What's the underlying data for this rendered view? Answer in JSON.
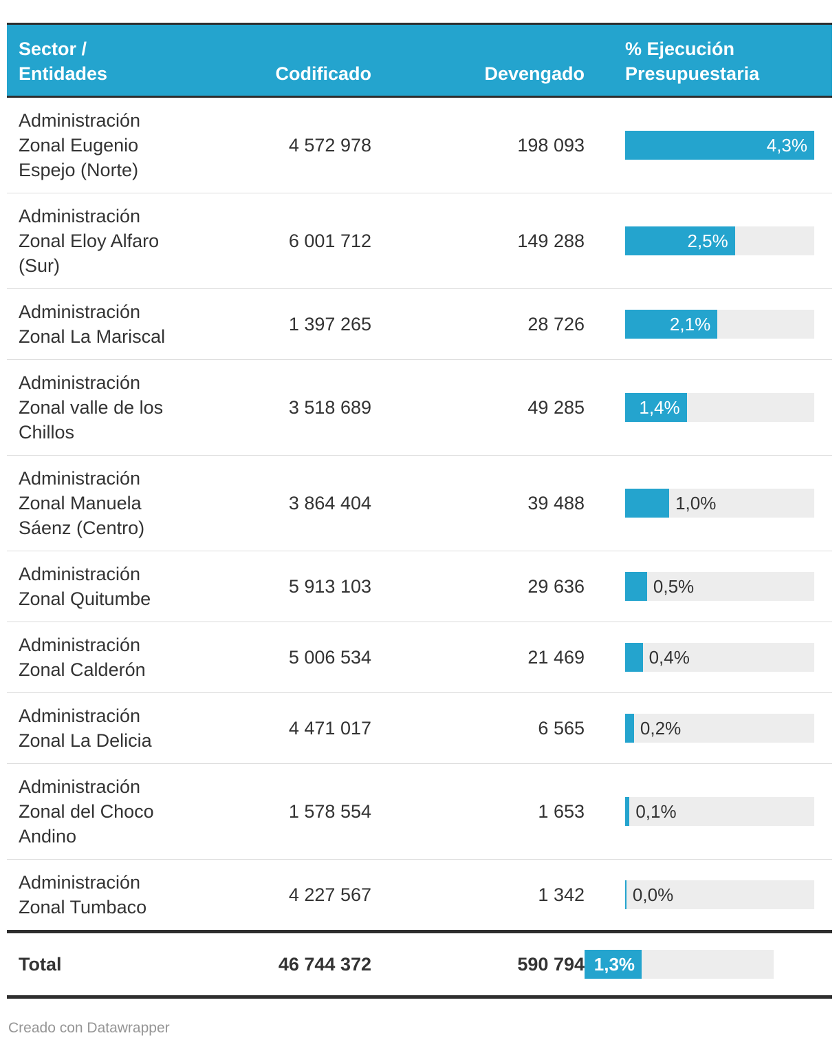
{
  "colors": {
    "accent": "#24a4ce",
    "header_text": "#ffffff",
    "dark_border": "#2e2e2e",
    "row_divider": "#dcdcdc",
    "bar_track": "#ededed",
    "text": "#333333",
    "credit_text": "#959595"
  },
  "header": {
    "sector": "Sector /\nEntidades",
    "codificado": "Codificado",
    "devengado": "Devengado",
    "ejecucion": "% Ejecución\nPresupuestaria"
  },
  "rows": [
    {
      "entity": "Administración\nZonal Eugenio\nEspejo (Norte)",
      "codificado": "4 572 978",
      "devengado": "198 093",
      "pct": "4,3%",
      "bar_pct": 100,
      "label_inside": true
    },
    {
      "entity": "Administración\nZonal Eloy Alfaro\n(Sur)",
      "codificado": "6 001 712",
      "devengado": "149 288",
      "pct": "2,5%",
      "bar_pct": 58.1,
      "label_inside": true
    },
    {
      "entity": "Administración\nZonal La Mariscal",
      "codificado": "1 397 265",
      "devengado": "28 726",
      "pct": "2,1%",
      "bar_pct": 48.8,
      "label_inside": true
    },
    {
      "entity": "Administración\nZonal valle de los\nChillos",
      "codificado": "3 518 689",
      "devengado": "49 285",
      "pct": "1,4%",
      "bar_pct": 32.6,
      "label_inside": true
    },
    {
      "entity": "Administración\nZonal Manuela\nSáenz (Centro)",
      "codificado": "3 864 404",
      "devengado": "39 488",
      "pct": "1,0%",
      "bar_pct": 23.3,
      "label_inside": false
    },
    {
      "entity": "Administración\nZonal Quitumbe",
      "codificado": "5 913 103",
      "devengado": "29 636",
      "pct": "0,5%",
      "bar_pct": 11.6,
      "label_inside": false
    },
    {
      "entity": "Administración\nZonal Calderón",
      "codificado": "5 006 534",
      "devengado": "21 469",
      "pct": "0,4%",
      "bar_pct": 9.3,
      "label_inside": false
    },
    {
      "entity": "Administración\nZonal La Delicia",
      "codificado": "4 471 017",
      "devengado": "6 565",
      "pct": "0,2%",
      "bar_pct": 4.7,
      "label_inside": false
    },
    {
      "entity": "Administración\nZonal del Choco\nAndino",
      "codificado": "1 578 554",
      "devengado": "1 653",
      "pct": "0,1%",
      "bar_pct": 2.3,
      "label_inside": false
    },
    {
      "entity": "Administración\nZonal Tumbaco",
      "codificado": "4 227 567",
      "devengado": "1 342",
      "pct": "0,0%",
      "bar_pct": 0.7,
      "label_inside": false
    }
  ],
  "total": {
    "label": "Total",
    "codificado": "46 744 372",
    "devengado": "590 794",
    "pct": "1,3%",
    "bar_pct": 30.2,
    "label_inside": true
  },
  "footer": {
    "credit": "Creado con Datawrapper"
  },
  "chart_data": {
    "type": "table",
    "title": "",
    "columns": [
      "Sector / Entidades",
      "Codificado",
      "Devengado",
      "% Ejecución Presupuestaria"
    ],
    "rows": [
      {
        "entidad": "Administración Zonal Eugenio Espejo (Norte)",
        "codificado": 4572978,
        "devengado": 198093,
        "ejecucion_pct": 4.3
      },
      {
        "entidad": "Administración Zonal Eloy Alfaro (Sur)",
        "codificado": 6001712,
        "devengado": 149288,
        "ejecucion_pct": 2.5
      },
      {
        "entidad": "Administración Zonal La Mariscal",
        "codificado": 1397265,
        "devengado": 28726,
        "ejecucion_pct": 2.1
      },
      {
        "entidad": "Administración Zonal valle de los Chillos",
        "codificado": 3518689,
        "devengado": 49285,
        "ejecucion_pct": 1.4
      },
      {
        "entidad": "Administración Zonal Manuela Sáenz (Centro)",
        "codificado": 3864404,
        "devengado": 39488,
        "ejecucion_pct": 1.0
      },
      {
        "entidad": "Administración Zonal Quitumbe",
        "codificado": 5913103,
        "devengado": 29636,
        "ejecucion_pct": 0.5
      },
      {
        "entidad": "Administración Zonal Calderón",
        "codificado": 5006534,
        "devengado": 21469,
        "ejecucion_pct": 0.4
      },
      {
        "entidad": "Administración Zonal La Delicia",
        "codificado": 4471017,
        "devengado": 6565,
        "ejecucion_pct": 0.2
      },
      {
        "entidad": "Administración Zonal del Choco Andino",
        "codificado": 1578554,
        "devengado": 1653,
        "ejecucion_pct": 0.1
      },
      {
        "entidad": "Administración Zonal Tumbaco",
        "codificado": 4227567,
        "devengado": 1342,
        "ejecucion_pct": 0.0
      }
    ],
    "total_row": {
      "entidad": "Total",
      "codificado": 46744372,
      "devengado": 590794,
      "ejecucion_pct": 1.3
    },
    "bar_chart_column": "% Ejecución Presupuestaria",
    "bar_scale_max_pct": 4.3,
    "legend_position": "none",
    "grid": false
  }
}
